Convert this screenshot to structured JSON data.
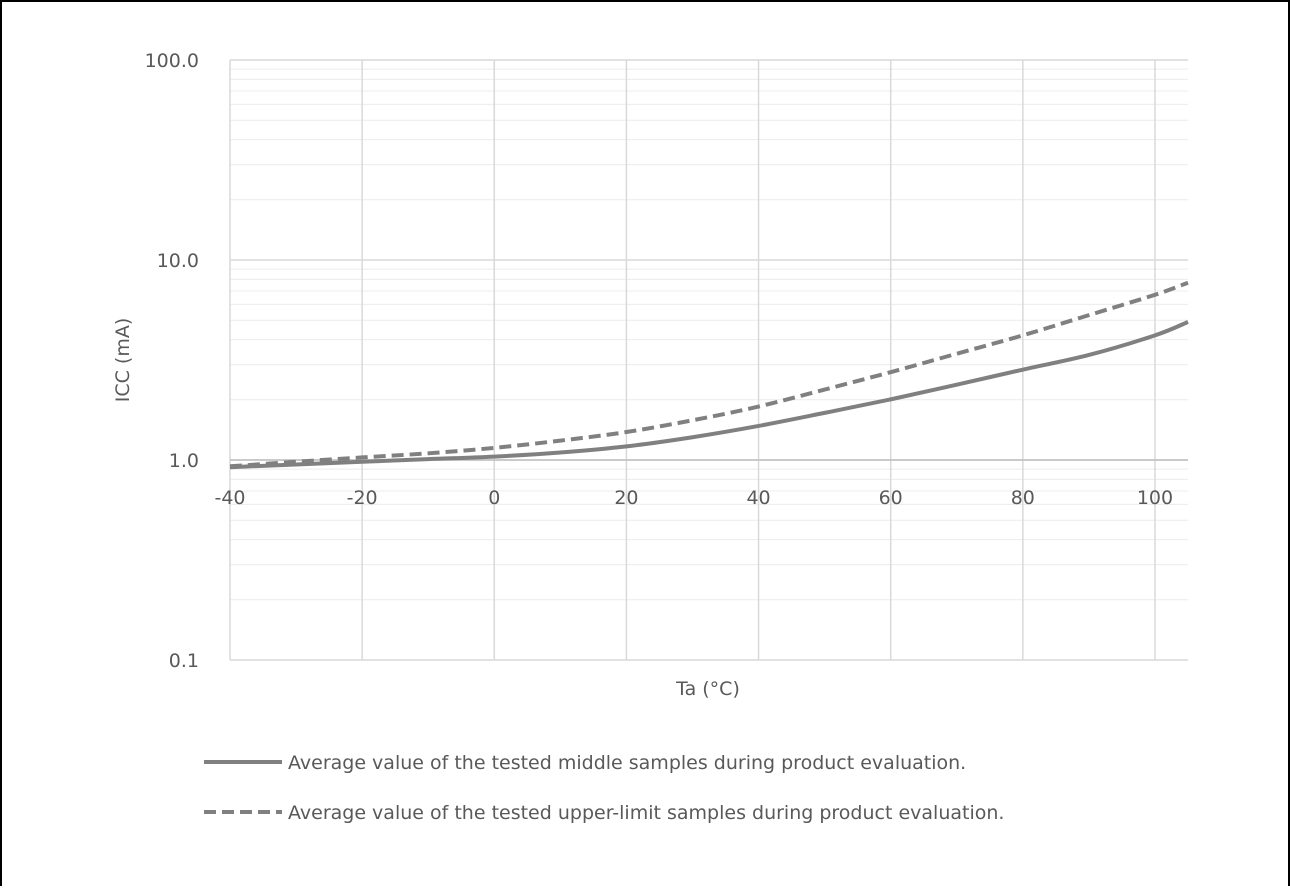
{
  "chart_data": {
    "type": "line",
    "title": "",
    "xlabel": "Ta (°C)",
    "ylabel": "ICC (mA)",
    "x_scale": "linear",
    "y_scale": "log",
    "xlim": [
      -40,
      105
    ],
    "ylim": [
      0.1,
      100
    ],
    "x_ticks": [
      -40,
      -20,
      0,
      20,
      40,
      60,
      80,
      100
    ],
    "x_tick_labels": [
      "-40",
      "-20",
      "0",
      "20",
      "40",
      "60",
      "80",
      "100"
    ],
    "y_ticks": [
      0.1,
      1,
      10,
      100
    ],
    "y_tick_labels": [
      "0.1",
      "1.0",
      "10.0",
      "100.0"
    ],
    "grid": true,
    "legend_position": "bottom",
    "colors": {
      "series": "#808080",
      "grid": "#d9d9d9",
      "text": "#595959"
    },
    "series": [
      {
        "name": "Average value of the tested middle samples during product evaluation.",
        "style": "solid",
        "x": [
          -40,
          -30,
          -20,
          -10,
          0,
          10,
          20,
          30,
          40,
          50,
          60,
          70,
          80,
          90,
          100,
          105
        ],
        "y": [
          0.92,
          0.95,
          0.98,
          1.01,
          1.04,
          1.09,
          1.17,
          1.3,
          1.48,
          1.72,
          2.01,
          2.38,
          2.83,
          3.35,
          4.2,
          4.9
        ]
      },
      {
        "name": "Average value of the tested upper-limit samples during product evaluation.",
        "style": "dashed",
        "x": [
          -40,
          -30,
          -20,
          -10,
          0,
          10,
          20,
          30,
          40,
          50,
          60,
          70,
          80,
          90,
          100,
          105
        ],
        "y": [
          0.93,
          0.98,
          1.03,
          1.08,
          1.15,
          1.25,
          1.38,
          1.58,
          1.85,
          2.25,
          2.75,
          3.4,
          4.2,
          5.3,
          6.7,
          7.7
        ]
      }
    ]
  }
}
